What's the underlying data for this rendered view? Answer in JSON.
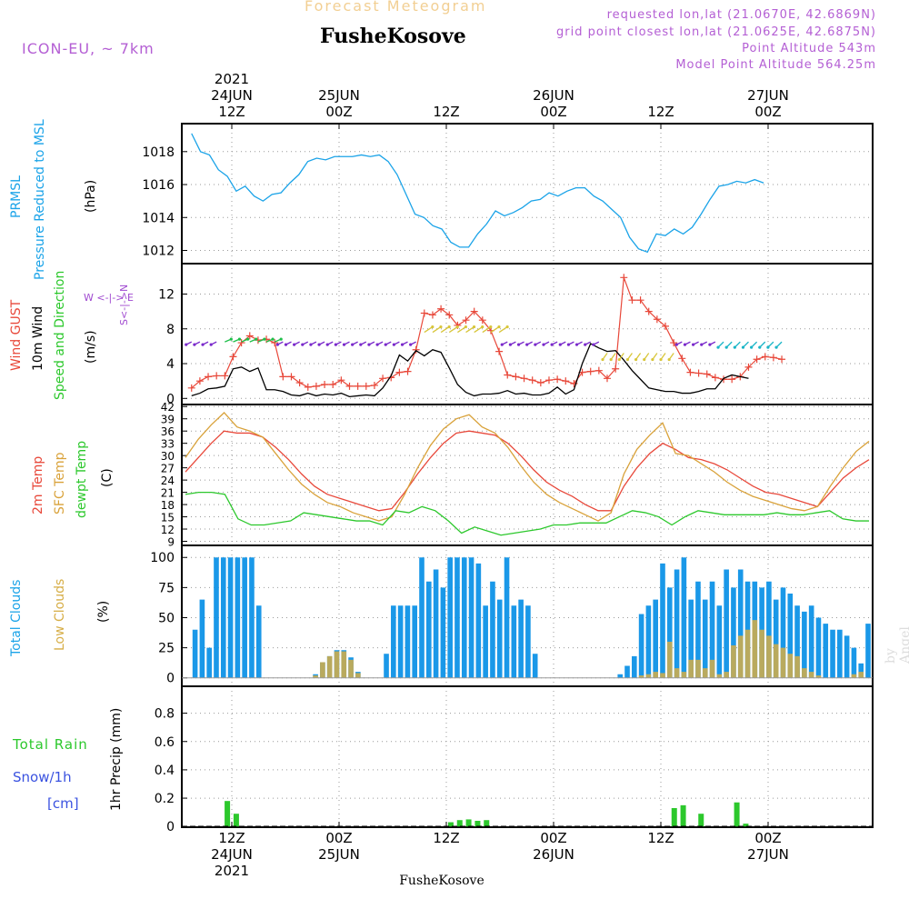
{
  "header": {
    "supertitle": "Forecast Meteogram",
    "title": "FusheKosove",
    "model": "ICON-EU, ~ 7km",
    "requested": "requested lon,lat (21.0670E, 42.6869N)",
    "closest": "grid point closest lon,lat (21.0625E, 42.6875N)",
    "altitude": "Point Altitude 543m",
    "model_altitude": "Model Point Altitude 564.25m",
    "bottom_label": "FusheKosove",
    "credit": "by Angel"
  },
  "time_axis": {
    "hours_total": 64,
    "major_ticks": [
      {
        "h": 0,
        "top": [
          "2021",
          "24JUN",
          "12Z"
        ],
        "bottom": [
          "12Z",
          "24JUN",
          "2021"
        ]
      },
      {
        "h": 12,
        "top": [
          "25JUN",
          "00Z"
        ],
        "bottom": [
          "00Z",
          "25JUN"
        ]
      },
      {
        "h": 24,
        "top": [
          "12Z"
        ],
        "bottom": [
          "12Z"
        ]
      },
      {
        "h": 36,
        "top": [
          "26JUN",
          "00Z"
        ],
        "bottom": [
          "00Z",
          "26JUN"
        ]
      },
      {
        "h": 48,
        "top": [
          "12Z"
        ],
        "bottom": [
          "12Z"
        ]
      },
      {
        "h": 60,
        "top": [
          "27JUN",
          "00Z"
        ],
        "bottom": [
          "00Z",
          "27JUN"
        ]
      }
    ]
  },
  "chart_data": [
    {
      "type": "line",
      "ylabels": [
        "PRMSL",
        "Pressure Reduced to MSL",
        "(hPa)"
      ],
      "ylim": [
        1011.2,
        1019.7
      ],
      "yticks": [
        1012,
        1014,
        1016,
        1018
      ],
      "x_hours_step": 1,
      "series": [
        {
          "name": "PRMSL",
          "color": "#1aa3e8",
          "values": [
            1019.1,
            1018.0,
            1017.8,
            1016.9,
            1016.5,
            1015.6,
            1015.9,
            1015.3,
            1015.0,
            1015.4,
            1015.5,
            1016.1,
            1016.6,
            1017.4,
            1017.6,
            1017.5,
            1017.7,
            1017.7,
            1017.7,
            1017.8,
            1017.7,
            1017.8,
            1017.4,
            1016.6,
            1015.4,
            1014.2,
            1014.0,
            1013.5,
            1013.3,
            1012.5,
            1012.2,
            1012.2,
            1013.0,
            1013.6,
            1014.4,
            1014.1,
            1014.3,
            1014.6,
            1015.0,
            1015.1,
            1015.5,
            1015.3,
            1015.6,
            1015.8,
            1015.8,
            1015.3,
            1015.0,
            1014.5,
            1014.0,
            1012.8,
            1012.1,
            1011.9,
            1013.0,
            1012.9,
            1013.3,
            1013.0,
            1013.4,
            1014.2,
            1015.1,
            1015.9,
            1016.0,
            1016.2,
            1016.1,
            1016.3,
            1016.1
          ]
        }
      ]
    },
    {
      "type": "line",
      "ylabels": [
        "Wind GUST",
        "10m Wind",
        "Speed and Direction",
        "(m/s)"
      ],
      "ylim": [
        -0.7,
        15.5
      ],
      "yticks": [
        0,
        4,
        8,
        12
      ],
      "series": [
        {
          "name": "Wind GUST",
          "color": "#e8483a",
          "marker": "+",
          "values": [
            1.2,
            2.0,
            2.5,
            2.6,
            2.6,
            4.8,
            6.4,
            7.2,
            6.7,
            6.8,
            6.4,
            2.5,
            2.5,
            1.8,
            1.3,
            1.4,
            1.6,
            1.6,
            2.1,
            1.4,
            1.4,
            1.4,
            1.5,
            2.3,
            2.4,
            3.0,
            3.1,
            5.6,
            9.8,
            9.6,
            10.3,
            9.6,
            8.4,
            9.0,
            10.0,
            9.0,
            7.8,
            5.4,
            2.7,
            2.5,
            2.3,
            2.1,
            1.8,
            2.1,
            2.2,
            2.0,
            1.7,
            3.0,
            3.1,
            3.2,
            2.3,
            3.4,
            13.9,
            11.3,
            11.3,
            10.0,
            9.1,
            8.3,
            6.4,
            4.6,
            3.0,
            2.9,
            2.8,
            2.4,
            2.2,
            2.2,
            2.5,
            3.6,
            4.5,
            4.8,
            4.7,
            4.5
          ]
        },
        {
          "name": "10m Wind",
          "color": "#000000",
          "values": [
            0.3,
            0.6,
            1.1,
            1.2,
            1.4,
            3.4,
            3.6,
            3.1,
            3.5,
            1.0,
            1.0,
            0.8,
            0.4,
            0.3,
            0.6,
            0.3,
            0.5,
            0.4,
            0.6,
            0.2,
            0.3,
            0.4,
            0.3,
            1.2,
            2.6,
            5.0,
            4.3,
            5.5,
            4.9,
            5.6,
            5.3,
            3.5,
            1.6,
            0.7,
            0.3,
            0.5,
            0.5,
            0.6,
            0.9,
            0.5,
            0.6,
            0.4,
            0.4,
            0.6,
            1.3,
            0.5,
            1.0,
            4.0,
            6.3,
            5.8,
            5.4,
            5.5,
            4.4,
            3.2,
            2.2,
            1.2,
            1.0,
            0.8,
            0.8,
            0.6,
            0.6,
            0.8,
            1.1,
            1.1,
            2.3,
            2.7,
            2.5,
            2.3
          ]
        }
      ]
    },
    {
      "type": "line",
      "ylabels": [
        "2m Temp",
        "SFC Temp",
        "dewpt Temp",
        "(C)"
      ],
      "ylim": [
        8,
        42.5
      ],
      "yticks": [
        9,
        12,
        15,
        18,
        21,
        24,
        27,
        30,
        33,
        36,
        39,
        42
      ],
      "series": [
        {
          "name": "2m Temp",
          "color": "#e8483a",
          "values": [
            26,
            29.5,
            33,
            36,
            35.5,
            35.5,
            34.5,
            32,
            29,
            25.5,
            22.5,
            20.5,
            19.5,
            18.5,
            17.5,
            16.5,
            17,
            21,
            25.5,
            29.5,
            33,
            35.5,
            36,
            35.5,
            35,
            33,
            30,
            26.5,
            23.5,
            21.5,
            20,
            18,
            16.5,
            16.5,
            22.5,
            27,
            30.5,
            33,
            31.5,
            29.5,
            29,
            28,
            26.5,
            24.5,
            22.5,
            21,
            20.5,
            19.5,
            18.5,
            17.5,
            21,
            24.5,
            27,
            29
          ]
        },
        {
          "name": "SFC Temp",
          "color": "#d9a23a",
          "values": [
            29.5,
            34,
            37.5,
            40.5,
            37,
            36,
            34.5,
            30.5,
            26.5,
            23,
            20.5,
            18.5,
            17.5,
            16,
            15,
            14,
            15,
            20.5,
            27,
            32.5,
            36.5,
            39,
            40,
            37,
            35.5,
            32,
            27.5,
            23.5,
            20.5,
            18.5,
            17,
            15.5,
            14,
            16,
            25.5,
            31.5,
            35,
            38,
            30.5,
            30,
            28,
            26,
            23.5,
            21.5,
            20,
            19,
            18,
            17,
            16.5,
            17.5,
            22.5,
            27,
            31,
            33.5
          ]
        },
        {
          "name": "dewpt Temp",
          "color": "#2cc82c",
          "values": [
            20.5,
            21,
            21,
            20.5,
            14.5,
            13,
            13,
            13.5,
            14,
            16,
            15.5,
            15,
            14.5,
            14,
            14,
            13,
            16.5,
            16,
            17.5,
            16.5,
            14,
            11,
            12.5,
            11.5,
            10.5,
            11,
            11.5,
            12,
            13,
            13,
            13.5,
            13.5,
            13.5,
            15,
            16.5,
            16,
            15,
            13,
            15,
            16.5,
            16,
            15.5,
            15.5,
            15.5,
            15.5,
            16,
            15.5,
            15.5,
            16,
            16.5,
            14.5,
            14,
            14
          ]
        }
      ]
    },
    {
      "type": "bar",
      "ylabels": [
        "Total Clouds",
        "Low Clouds",
        "(%)"
      ],
      "ylim": [
        -7,
        110
      ],
      "yticks": [
        0,
        25,
        50,
        75,
        100
      ],
      "series": [
        {
          "name": "Total Clouds",
          "color": "#1a98e8",
          "values": [
            0,
            40,
            65,
            25,
            100,
            100,
            100,
            100,
            100,
            100,
            60,
            0,
            0,
            0,
            0,
            0,
            0,
            0,
            3,
            13,
            18,
            23,
            23,
            17,
            5,
            0,
            0,
            0,
            20,
            60,
            60,
            60,
            60,
            100,
            80,
            90,
            75,
            100,
            100,
            100,
            100,
            95,
            60,
            80,
            65,
            100,
            60,
            65,
            60,
            20,
            0,
            0,
            0,
            0,
            0,
            0,
            0,
            0,
            0,
            0,
            0,
            3,
            10,
            18,
            53,
            60,
            65,
            95,
            75,
            90,
            100,
            65,
            80,
            65,
            80,
            60,
            90,
            75,
            90,
            80,
            80,
            75,
            80,
            65,
            75,
            70,
            60,
            55,
            60,
            50,
            45,
            40,
            40,
            35,
            25,
            12,
            45
          ]
        },
        {
          "name": "Low Clouds",
          "color": "#d6ad45",
          "values": [
            0,
            0,
            0,
            0,
            0,
            0,
            0,
            0,
            0,
            0,
            0,
            0,
            0,
            0,
            0,
            0,
            0,
            0,
            2,
            13,
            18,
            22,
            22,
            15,
            4,
            0,
            0,
            0,
            0,
            0,
            0,
            0,
            0,
            0,
            0,
            0,
            0,
            0,
            0,
            0,
            0,
            0,
            0,
            0,
            0,
            0,
            0,
            0,
            0,
            0,
            0,
            0,
            0,
            0,
            0,
            0,
            0,
            0,
            0,
            0,
            0,
            0,
            0,
            0,
            2,
            3,
            5,
            4,
            30,
            8,
            5,
            15,
            15,
            8,
            15,
            3,
            5,
            27,
            35,
            40,
            48,
            40,
            35,
            28,
            25,
            20,
            18,
            8,
            5,
            2,
            0,
            0,
            0,
            0,
            3,
            5
          ]
        }
      ]
    },
    {
      "type": "bar",
      "ylabels": [
        "Total Rain",
        "Snow/1h",
        "[cm]",
        "1hr Precip (mm)"
      ],
      "ylim": [
        -0.005,
        0.99
      ],
      "yticks": [
        0,
        0.2,
        0.4,
        0.6,
        0.8
      ],
      "series": [
        {
          "name": "Total Rain",
          "color": "#2cc82c",
          "values": [
            {
              "h": -0.5,
              "v": 0.18
            },
            {
              "h": 0.5,
              "v": 0.09
            },
            {
              "h": 24.5,
              "v": 0.03
            },
            {
              "h": 25.5,
              "v": 0.045
            },
            {
              "h": 26.5,
              "v": 0.05
            },
            {
              "h": 27.5,
              "v": 0.04
            },
            {
              "h": 28.5,
              "v": 0.045
            },
            {
              "h": 49.5,
              "v": 0.13
            },
            {
              "h": 50.5,
              "v": 0.15
            },
            {
              "h": 52.5,
              "v": 0.09
            },
            {
              "h": 56.5,
              "v": 0.17
            },
            {
              "h": 57.5,
              "v": 0.02
            }
          ]
        }
      ]
    }
  ],
  "wind_barbs": {
    "compass": "W <-|-> E  S<-|->N",
    "purple_color": "#7a2acb",
    "green_color": "#1fbf4a",
    "yellow_color": "#d8c63a"
  }
}
